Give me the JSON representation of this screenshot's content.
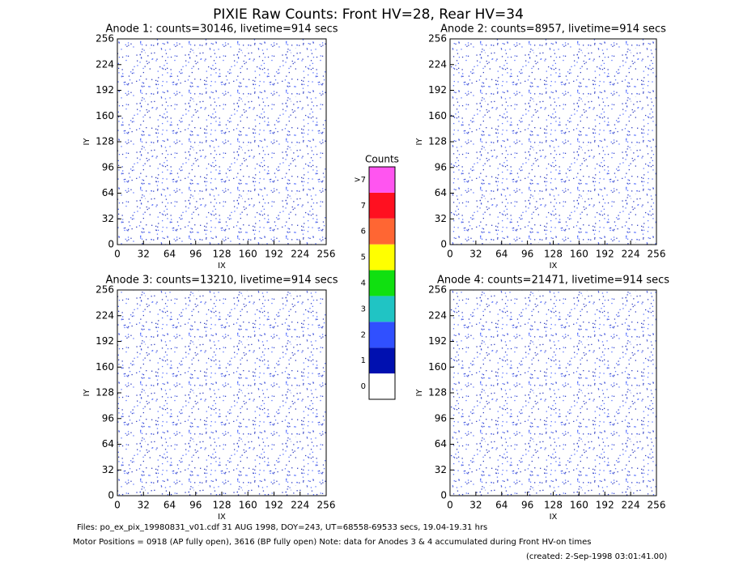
{
  "title": "PIXIE Raw Counts:  Front HV=28, Rear HV=34",
  "chart_data": [
    {
      "type": "heatmap",
      "title": "Anode 1: counts=30146, livetime=914 secs",
      "xlabel": "IX",
      "ylabel": "IY",
      "xlim": [
        0,
        256
      ],
      "ylim": [
        0,
        256
      ],
      "xticks": [
        0,
        32,
        64,
        96,
        128,
        160,
        192,
        224,
        256
      ],
      "yticks": [
        0,
        32,
        64,
        96,
        128,
        160,
        192,
        224,
        256
      ]
    },
    {
      "type": "heatmap",
      "title": "Anode 2: counts=8957, livetime=914 secs",
      "xlabel": "IX",
      "ylabel": "IY",
      "xlim": [
        0,
        256
      ],
      "ylim": [
        0,
        256
      ],
      "xticks": [
        0,
        32,
        64,
        96,
        128,
        160,
        192,
        224,
        256
      ],
      "yticks": [
        0,
        32,
        64,
        96,
        128,
        160,
        192,
        224,
        256
      ]
    },
    {
      "type": "heatmap",
      "title": "Anode 3: counts=13210, livetime=914 secs",
      "xlabel": "IX",
      "ylabel": "IY",
      "xlim": [
        0,
        256
      ],
      "ylim": [
        0,
        256
      ],
      "xticks": [
        0,
        32,
        64,
        96,
        128,
        160,
        192,
        224,
        256
      ],
      "yticks": [
        0,
        32,
        64,
        96,
        128,
        160,
        192,
        224,
        256
      ]
    },
    {
      "type": "heatmap",
      "title": "Anode 4: counts=21471, livetime=914 secs",
      "xlabel": "IX",
      "ylabel": "IY",
      "xlim": [
        0,
        256
      ],
      "ylim": [
        0,
        256
      ],
      "xticks": [
        0,
        32,
        64,
        96,
        128,
        160,
        192,
        224,
        256
      ],
      "yticks": [
        0,
        32,
        64,
        96,
        128,
        160,
        192,
        224,
        256
      ]
    },
    {
      "type": "colorbar",
      "title": "Counts",
      "categories": [
        "0",
        "1",
        "2",
        "3",
        "4",
        "5",
        "6",
        "7",
        ">7"
      ],
      "colors": [
        "#ffffff",
        "#0010b0",
        "#3050ff",
        "#20c4c4",
        "#10e010",
        "#ffff00",
        "#ff6633",
        "#ff1020",
        "#ff55f0"
      ]
    }
  ],
  "notes": [
    "Files: po_ex_pix_19980831_v01.cdf     31 AUG 1998, DOY=243, UT=68558-69533 secs, 19.04-19.31 hrs",
    "Motor Positions = 0918 (AP fully open), 3616 (BP fully open)    Note: data for Anodes 3 & 4 accumulated during Front HV-on times",
    "(created:  2-Sep-1998 03:01:41.00)"
  ]
}
